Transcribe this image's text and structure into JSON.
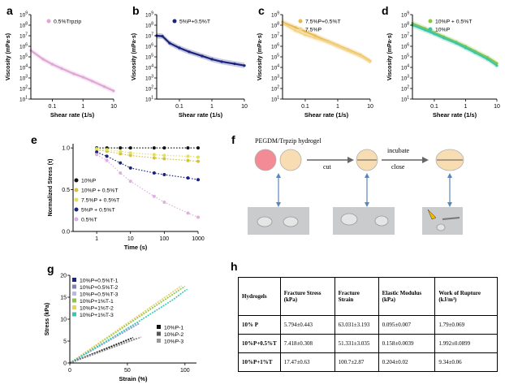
{
  "panel_labels": {
    "a": "a",
    "b": "b",
    "c": "c",
    "d": "d",
    "e": "e",
    "f": "f",
    "g": "g",
    "h": "h"
  },
  "colors": {
    "pink": "#e0a6d6",
    "blue": "#1a237e",
    "blue_band": "#b8c2ee",
    "gold": "#e8b84a",
    "gold_light": "#f2d48a",
    "green": "#8cc63f",
    "teal": "#3fc4a8",
    "e_10P": "#111111",
    "e_10P05T": "#d2c23c",
    "e_75P05T": "#e0e060",
    "e_5P05T": "#1a237e",
    "e_05T": "#ddb0e0",
    "g_T1": "#1a237e",
    "g_T2": "#8080c0",
    "g_T3": "#b8b8e8",
    "g_1T1": "#8cc63f",
    "g_1T2": "#e6d06a",
    "g_1T3": "#30c8b8",
    "g_P1": "#111111",
    "g_P2": "#555555",
    "g_P3": "#999999",
    "f_pink": "#f28b96",
    "f_cream": "#f9ddb2",
    "f_arrow": "#5a86b8"
  },
  "chart_data": [
    {
      "id": "a",
      "type": "line",
      "ylabel": "Viscosity (mPa·s)",
      "xlabel": "Shear rate (1/s)",
      "xscale": "log",
      "yscale": "log",
      "xlim": [
        0.02,
        10
      ],
      "ylim": [
        10,
        1000000000
      ],
      "x_ticks": [
        "0.1",
        "1",
        "10"
      ],
      "y_ticks": [
        "10^1",
        "10^2",
        "10^3",
        "10^4",
        "10^5",
        "10^6",
        "10^7",
        "10^8",
        "10^9"
      ],
      "series": [
        {
          "name": "0.5%Trpzip",
          "color": "#e0a6d6",
          "x": [
            0.02,
            0.05,
            0.1,
            0.2,
            0.5,
            1,
            2,
            5,
            10
          ],
          "y": [
            400000,
            60000,
            20000,
            8000,
            2500,
            1200,
            500,
            150,
            60
          ]
        }
      ]
    },
    {
      "id": "b",
      "type": "line",
      "ylabel": "Viscosity (mPa·s)",
      "xlabel": "Shear rate (1/s)",
      "xscale": "log",
      "yscale": "log",
      "xlim": [
        0.02,
        10
      ],
      "ylim": [
        10,
        1000000000
      ],
      "x_ticks": [
        "0.1",
        "1",
        "10"
      ],
      "y_ticks": [
        "10^1",
        "10^2",
        "10^3",
        "10^4",
        "10^5",
        "10^6",
        "10^7",
        "10^8",
        "10^9"
      ],
      "series": [
        {
          "name": "5%P+0.5%T",
          "color": "#1a237e",
          "x": [
            0.02,
            0.03,
            0.05,
            0.1,
            0.2,
            0.5,
            1,
            2,
            5,
            10
          ],
          "y": [
            10000000,
            9000000,
            2000000,
            700000,
            300000,
            120000,
            60000,
            35000,
            22000,
            15000
          ]
        }
      ]
    },
    {
      "id": "c",
      "type": "line",
      "ylabel": "Viscosity (mPa·s)",
      "xlabel": "Shear rate (1/s)",
      "xscale": "log",
      "yscale": "log",
      "xlim": [
        0.02,
        10
      ],
      "ylim": [
        10,
        1000000000
      ],
      "x_ticks": [
        "0.1",
        "1",
        "10"
      ],
      "y_ticks": [
        "10^1",
        "10^2",
        "10^3",
        "10^4",
        "10^5",
        "10^6",
        "10^7",
        "10^8",
        "10^9"
      ],
      "series": [
        {
          "name": "7.5%P+0.5%T",
          "color": "#e8b84a",
          "x": [
            0.02,
            0.05,
            0.1,
            0.2,
            0.5,
            1,
            2,
            5,
            10
          ],
          "y": [
            200000000,
            60000000,
            25000000,
            10000000,
            3000000,
            1200000,
            500000,
            150000,
            40000
          ]
        },
        {
          "name": "7.5%P",
          "color": "#f2d48a",
          "x": [
            0.02,
            0.05,
            0.1,
            0.2,
            0.5,
            1,
            2,
            5,
            10
          ],
          "y": [
            150000000,
            30000000,
            12000000,
            6000000,
            2500000,
            1000000,
            400000,
            120000,
            35000
          ]
        }
      ]
    },
    {
      "id": "d",
      "type": "scatter",
      "ylabel": "Viscosity (mPa·s)",
      "xlabel": "Shear rate (1/s)",
      "xscale": "log",
      "yscale": "log",
      "xlim": [
        0.02,
        10
      ],
      "ylim": [
        10,
        1000000000
      ],
      "x_ticks": [
        "0.1",
        "1",
        "10"
      ],
      "y_ticks": [
        "10^1",
        "10^2",
        "10^3",
        "10^4",
        "10^5",
        "10^6",
        "10^7",
        "10^8",
        "10^9"
      ],
      "series": [
        {
          "name": "10%P + 0.5%T",
          "color": "#8cc63f",
          "x": [
            0.02,
            0.05,
            0.1,
            0.2,
            0.5,
            1,
            2,
            5,
            10
          ],
          "y": [
            150000000,
            50000000,
            20000000,
            8000000,
            2500000,
            1000000,
            350000,
            90000,
            25000
          ]
        },
        {
          "name": "10%P",
          "color": "#3fc4a8",
          "x": [
            0.02,
            0.05,
            0.1,
            0.2,
            0.5,
            1,
            2,
            5,
            10
          ],
          "y": [
            100000000,
            35000000,
            15000000,
            6000000,
            2000000,
            700000,
            250000,
            60000,
            15000
          ]
        }
      ]
    },
    {
      "id": "e",
      "type": "scatter",
      "ylabel": "Normalized Stress (τ)",
      "xlabel": "Time (s)",
      "xscale": "log",
      "yscale": "linear",
      "xlim": [
        0.2,
        1000
      ],
      "ylim": [
        0,
        1.05
      ],
      "x_ticks": [
        "1",
        "10",
        "100",
        "1000"
      ],
      "y_ticks": [
        "0.0",
        "0.5",
        "1.0"
      ],
      "series": [
        {
          "name": "10%P",
          "color": "#111111",
          "x": [
            1,
            2,
            5,
            10,
            50,
            100,
            500,
            1000
          ],
          "y": [
            1.0,
            1.0,
            1.0,
            1.0,
            1.0,
            1.0,
            1.0,
            1.0
          ]
        },
        {
          "name": "10%P + 0.5%T",
          "color": "#d2c23c",
          "x": [
            1,
            2,
            5,
            10,
            50,
            100,
            500,
            1000
          ],
          "y": [
            0.98,
            0.96,
            0.93,
            0.91,
            0.88,
            0.87,
            0.85,
            0.84
          ]
        },
        {
          "name": "7.5%P + 0.5%T",
          "color": "#e0e060",
          "x": [
            1,
            2,
            5,
            10,
            50,
            100,
            500,
            1000
          ],
          "y": [
            0.99,
            0.98,
            0.96,
            0.94,
            0.92,
            0.91,
            0.9,
            0.89
          ]
        },
        {
          "name": "5%P + 0.5%T",
          "color": "#1a237e",
          "x": [
            1,
            2,
            5,
            10,
            50,
            100,
            500,
            1000
          ],
          "y": [
            0.95,
            0.9,
            0.82,
            0.76,
            0.7,
            0.68,
            0.64,
            0.62
          ]
        },
        {
          "name": "0.5%T",
          "color": "#ddb0e0",
          "x": [
            1,
            2,
            5,
            10,
            50,
            100,
            500,
            1000
          ],
          "y": [
            0.92,
            0.85,
            0.7,
            0.6,
            0.42,
            0.35,
            0.22,
            0.17
          ]
        }
      ]
    },
    {
      "id": "g",
      "type": "line",
      "ylabel": "Stress (kPa)",
      "xlabel": "Strain (%)",
      "xlim": [
        0,
        110
      ],
      "ylim": [
        0,
        20
      ],
      "x_ticks": [
        "0",
        "50",
        "100"
      ],
      "y_ticks": [
        "0",
        "5",
        "10",
        "15",
        "20"
      ],
      "series": [
        {
          "name": "10%P+0.5%T-1",
          "color": "#1a237e",
          "x": [
            0,
            55
          ],
          "y": [
            0,
            8.4
          ]
        },
        {
          "name": "10%P+0.5%T-2",
          "color": "#8080c0",
          "x": [
            0,
            60
          ],
          "y": [
            0,
            9.0
          ]
        },
        {
          "name": "10%P+0.5%T-3",
          "color": "#b8b8e8",
          "x": [
            0,
            60
          ],
          "y": [
            0,
            9.2
          ]
        },
        {
          "name": "10%P+1%T-1",
          "color": "#8cc63f",
          "x": [
            0,
            100
          ],
          "y": [
            0,
            17.5
          ]
        },
        {
          "name": "10%P+1%T-2",
          "color": "#e6d06a",
          "x": [
            0,
            97
          ],
          "y": [
            0,
            17.6
          ]
        },
        {
          "name": "10%P+1%T-3",
          "color": "#30c8b8",
          "x": [
            0,
            30,
            60,
            90,
            100,
            102
          ],
          "y": [
            0,
            4.7,
            9.5,
            14.5,
            16.5,
            16.8
          ]
        },
        {
          "name": "10%P-1",
          "color": "#111111",
          "x": [
            0,
            55
          ],
          "y": [
            0,
            5.8
          ]
        },
        {
          "name": "10%P-2",
          "color": "#555555",
          "x": [
            0,
            58
          ],
          "y": [
            0,
            5.6
          ]
        },
        {
          "name": "10%P-3",
          "color": "#999999",
          "x": [
            0,
            62
          ],
          "y": [
            0,
            5.9
          ]
        }
      ]
    }
  ],
  "panel_f": {
    "title": "PEGDM/Trpzip hydrogel",
    "step1": "cut",
    "step2_top": "incubate",
    "step2_bottom": "close"
  },
  "table_h": {
    "headers": [
      "Hydrogels",
      "Fracture Stress (kPa)",
      "Fracture Strain",
      "Elastic Modulus (kPa)",
      "Work of Rupture (kJ/m³)"
    ],
    "rows": [
      [
        "10% P",
        "5.794±0.443",
        "63.031±3.193",
        "0.095±0.007",
        "1.79±0.069"
      ],
      [
        "10%P+0.5%T",
        "7.418±0.308",
        "51.331±3.035",
        "0.158±0.0039",
        "1.992±0.0899"
      ],
      [
        "10%P+1%T",
        "17.47±0.63",
        "100.7±2.87",
        "0.204±0.02",
        "9.34±0.06"
      ]
    ]
  }
}
